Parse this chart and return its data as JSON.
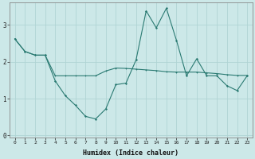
{
  "xlabel": "Humidex (Indice chaleur)",
  "ylabel": "",
  "bg_color": "#cce8e8",
  "grid_color": "#b0d4d4",
  "line_color": "#2a7a72",
  "xlim": [
    -0.5,
    23.5
  ],
  "ylim": [
    -0.05,
    3.6
  ],
  "yticks": [
    0,
    1,
    2,
    3
  ],
  "xticks": [
    0,
    1,
    2,
    3,
    4,
    5,
    6,
    7,
    8,
    9,
    10,
    11,
    12,
    13,
    14,
    15,
    16,
    17,
    18,
    19,
    20,
    21,
    22,
    23
  ],
  "line1_x": [
    0,
    1,
    2,
    3,
    4,
    5,
    6,
    7,
    8,
    9,
    10,
    11,
    12,
    13,
    14,
    15,
    16,
    17,
    18,
    19,
    20,
    21,
    22,
    23
  ],
  "line1_y": [
    2.62,
    2.28,
    2.18,
    2.18,
    1.48,
    1.08,
    0.82,
    0.52,
    0.45,
    0.72,
    1.38,
    1.42,
    2.05,
    3.38,
    2.92,
    3.45,
    2.58,
    1.62,
    2.08,
    1.62,
    1.62,
    1.35,
    1.22,
    1.62
  ],
  "line2_x": [
    0,
    1,
    2,
    3,
    4,
    5,
    6,
    7,
    8,
    9,
    10,
    11,
    12,
    13,
    14,
    15,
    16,
    17,
    18,
    19,
    20,
    21,
    22,
    23
  ],
  "line2_y": [
    2.62,
    2.28,
    2.18,
    2.18,
    1.62,
    1.62,
    1.62,
    1.62,
    1.62,
    1.75,
    1.83,
    1.82,
    1.8,
    1.78,
    1.76,
    1.73,
    1.72,
    1.72,
    1.72,
    1.7,
    1.68,
    1.65,
    1.63,
    1.63
  ]
}
